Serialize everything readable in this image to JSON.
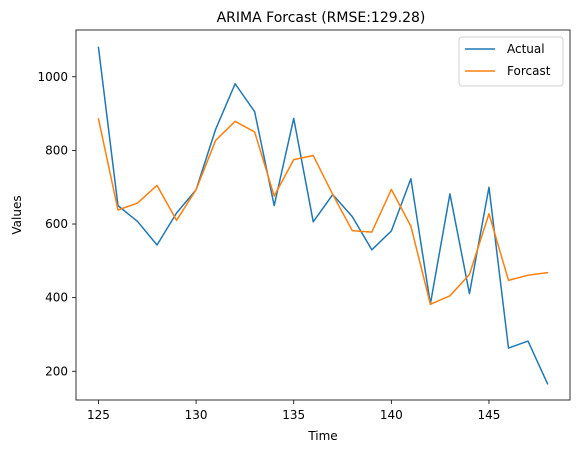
{
  "chart_data": {
    "type": "line",
    "title": "ARIMA Forcast (RMSE:129.28)",
    "xlabel": "Time",
    "ylabel": "Values",
    "x": [
      125,
      126,
      127,
      128,
      129,
      130,
      131,
      132,
      133,
      134,
      135,
      136,
      137,
      138,
      139,
      140,
      141,
      142,
      143,
      144,
      145,
      146,
      147,
      148
    ],
    "xlim": [
      123.85,
      149.15
    ],
    "ylim": [
      122,
      1127
    ],
    "xticks": [
      125,
      130,
      135,
      140,
      145
    ],
    "yticks": [
      200,
      400,
      600,
      800,
      1000
    ],
    "grid": false,
    "legend_position": "upper right",
    "series": [
      {
        "name": "Actual",
        "color": "#1f77b4",
        "values": [
          1080,
          650,
          607,
          543,
          630,
          693,
          857,
          981,
          905,
          650,
          887,
          606,
          680,
          620,
          530,
          581,
          723,
          383,
          682,
          411,
          700,
          263,
          282,
          166
        ]
      },
      {
        "name": "Forcast",
        "color": "#ff7f0e",
        "values": [
          886,
          638,
          657,
          705,
          610,
          693,
          827,
          879,
          850,
          676,
          775,
          786,
          680,
          582,
          578,
          694,
          594,
          382,
          405,
          463,
          628,
          447,
          461,
          468
        ]
      }
    ]
  }
}
